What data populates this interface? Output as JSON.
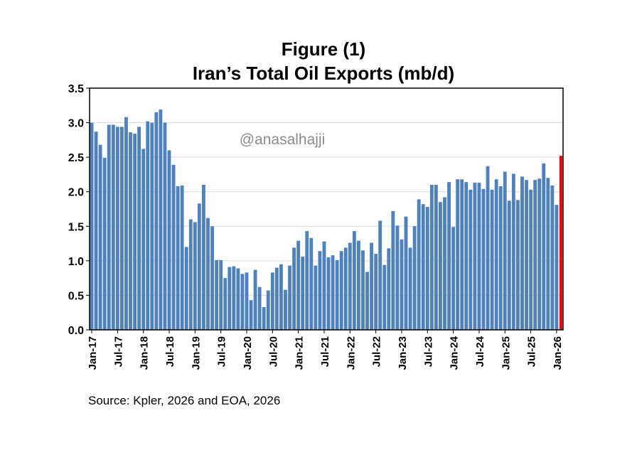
{
  "chart_data": {
    "type": "bar",
    "title": "Figure (1)",
    "subtitle": "Iran’s Total Oil Exports (mb/d)",
    "watermark": "@anasalhajji",
    "source": "Source: Kpler, 2026 and EOA, 2026",
    "xlabel": "",
    "ylabel": "",
    "ylim": [
      0,
      3.5
    ],
    "yticks": [
      "0.0",
      "0.5",
      "1.0",
      "1.5",
      "2.0",
      "2.5",
      "3.0",
      "3.5"
    ],
    "grid": true,
    "legend": "none",
    "colors": {
      "bar": "#4f81bd",
      "highlight": "#ff0000",
      "grid": "#d9d9d9"
    },
    "xtick_labels": [
      "Jan-17",
      "Jul-17",
      "Jan-18",
      "Jul-18",
      "Jan-19",
      "Jul-19",
      "Jan-20",
      "Jul-20",
      "Jan-21",
      "Jul-21",
      "Jan-22",
      "Jul-22",
      "Jan-23",
      "Jul-23",
      "Jan-24",
      "Jul-24",
      "Jan-25",
      "Jul-25",
      "Jan-26"
    ],
    "highlight_last": true,
    "start_month": "Jan-17",
    "values": [
      3.0,
      2.87,
      2.68,
      2.49,
      2.97,
      2.97,
      2.94,
      2.94,
      3.08,
      2.86,
      2.84,
      2.94,
      2.62,
      3.02,
      3.0,
      3.15,
      3.19,
      3.0,
      2.6,
      2.39,
      2.08,
      2.09,
      1.2,
      1.6,
      1.56,
      1.83,
      2.1,
      1.62,
      1.5,
      1.01,
      1.01,
      0.75,
      0.91,
      0.92,
      0.89,
      0.81,
      0.83,
      0.43,
      0.87,
      0.62,
      0.33,
      0.57,
      0.83,
      0.9,
      0.95,
      0.58,
      0.93,
      1.19,
      1.29,
      1.06,
      1.43,
      1.33,
      0.93,
      1.14,
      1.28,
      1.05,
      1.08,
      1.01,
      1.14,
      1.19,
      1.26,
      1.43,
      1.29,
      1.15,
      0.84,
      1.26,
      1.1,
      1.58,
      0.94,
      1.18,
      1.72,
      1.51,
      1.31,
      1.64,
      1.19,
      1.5,
      1.89,
      1.82,
      1.78,
      2.1,
      2.1,
      1.85,
      1.92,
      2.14,
      1.49,
      2.18,
      2.18,
      2.14,
      2.03,
      2.13,
      2.13,
      2.04,
      2.37,
      2.03,
      2.18,
      2.08,
      2.29,
      1.87,
      2.26,
      1.88,
      2.22,
      2.17,
      2.03,
      2.17,
      2.19,
      2.41,
      2.2,
      2.09,
      1.81,
      2.52
    ]
  }
}
